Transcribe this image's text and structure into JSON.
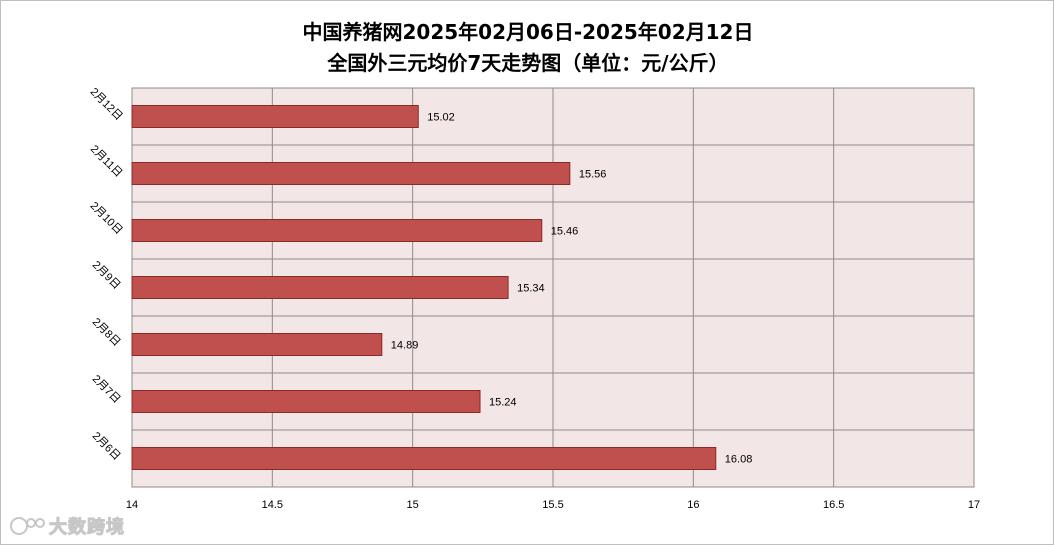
{
  "chart_data": {
    "type": "bar",
    "orientation": "horizontal",
    "title_lines": [
      "中国养猪网2025年02月06日-2025年02月12日",
      "全国外三元均价7天走势图（单位：元/公斤）"
    ],
    "categories": [
      "2月12日",
      "2月11日",
      "2月10日",
      "2月9日",
      "2月8日",
      "2月7日",
      "2月6日"
    ],
    "values": [
      15.02,
      15.56,
      15.46,
      15.34,
      14.89,
      15.24,
      16.08
    ],
    "value_labels": [
      "15.02",
      "15.56",
      "15.46",
      "15.34",
      "14.89",
      "15.24",
      "16.08"
    ],
    "xlim": [
      14,
      17
    ],
    "x_ticks": [
      "14",
      "14.5",
      "15",
      "15.5",
      "16",
      "16.5",
      "17"
    ],
    "x_tick_values": [
      14,
      14.5,
      15,
      15.5,
      16,
      16.5,
      17
    ],
    "grid": true,
    "legend": "none",
    "colors": {
      "bar_fill": "#c0504d",
      "bar_stroke": "#8c2a28",
      "plot_background": "#f2e6e6",
      "grid": "#8c8c8c"
    }
  },
  "watermark": {
    "text": "大数跨境",
    "icon": "logo-icon"
  }
}
